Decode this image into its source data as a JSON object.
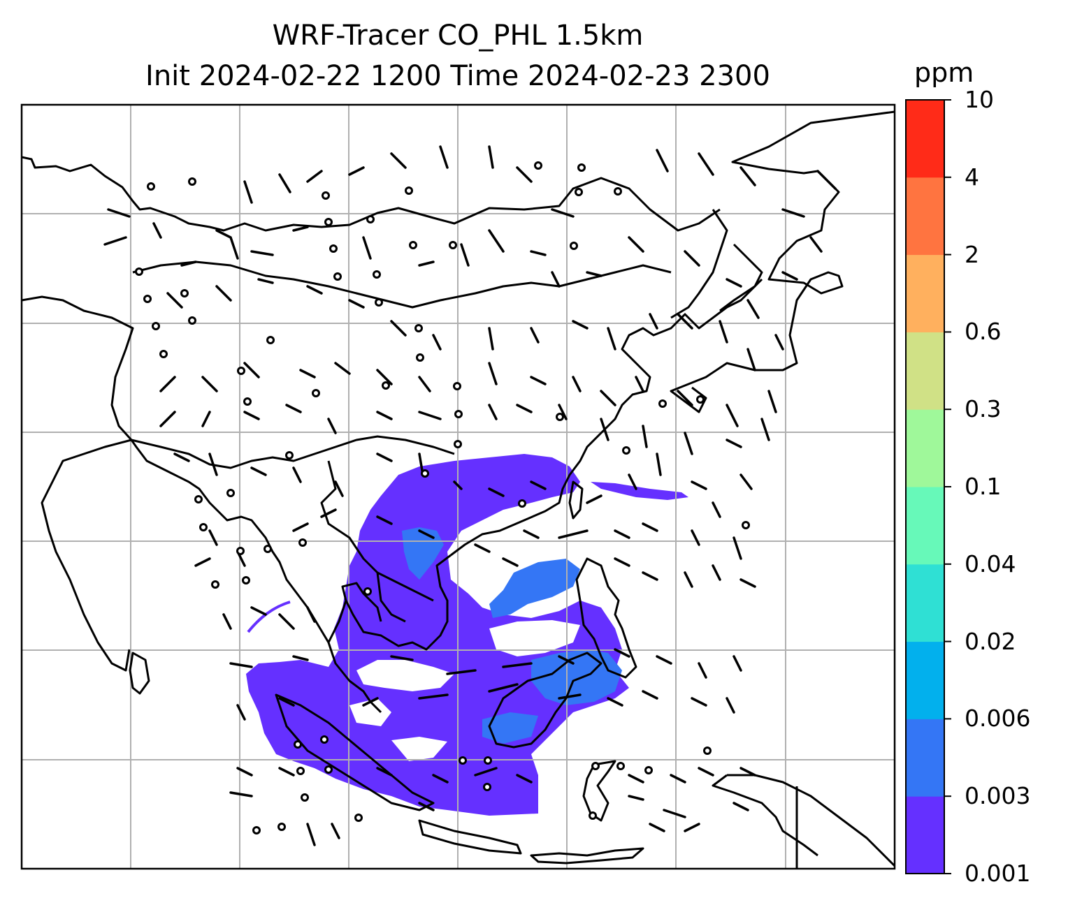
{
  "title": {
    "line1": "WRF-Tracer CO_PHL 1.5km",
    "line2": "Init 2024-02-22 1200 Time 2024-02-23 2300"
  },
  "colorbar": {
    "unit": "ppm",
    "levels": [
      "0.001",
      "0.003",
      "0.006",
      "0.02",
      "0.04",
      "0.1",
      "0.3",
      "0.6",
      "2",
      "4",
      "10"
    ],
    "colors": [
      "#6530ff",
      "#3476f5",
      "#02b0ed",
      "#2fe0d4",
      "#67f9b9",
      "#9ff89a",
      "#d0e186",
      "#ffb05e",
      "#ff7440",
      "#ff2b18"
    ]
  },
  "map": {
    "plume_color": "#6530ff",
    "plume_secondary_color": "#3476f5",
    "gridline_color": "#b0b0b0",
    "coastline_color": "#000000",
    "gridlines": true,
    "wind_barbs": true,
    "calm_circles": true
  }
}
